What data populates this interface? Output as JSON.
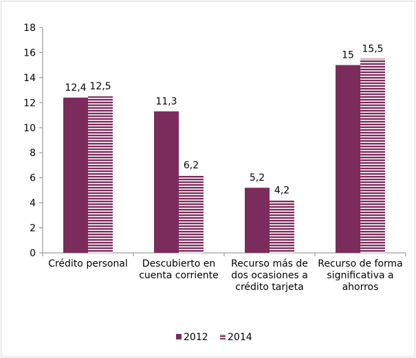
{
  "chart_data": {
    "type": "bar",
    "categories": [
      "Crédito personal",
      "Descubierto en cuenta corriente",
      "Recurso más de dos ocasiones a crédito tarjeta",
      "Recurso de forma significativa a ahorros"
    ],
    "series": [
      {
        "name": "2012",
        "color": "#7b2c5c",
        "values": [
          12.4,
          11.3,
          5.2,
          15
        ],
        "value_labels": [
          "12,4",
          "11,3",
          "5,2",
          "15"
        ]
      },
      {
        "name": "2014",
        "color": "#7b2c5c",
        "pattern": "horizontal-stripes",
        "values": [
          12.5,
          6.2,
          4.2,
          15.5
        ],
        "value_labels": [
          "12,5",
          "6,2",
          "4,2",
          "15,5"
        ]
      }
    ],
    "ylim": [
      0,
      18
    ],
    "yticks": [
      0,
      2,
      4,
      6,
      8,
      10,
      12,
      14,
      16,
      18
    ],
    "legend": "bottom"
  }
}
